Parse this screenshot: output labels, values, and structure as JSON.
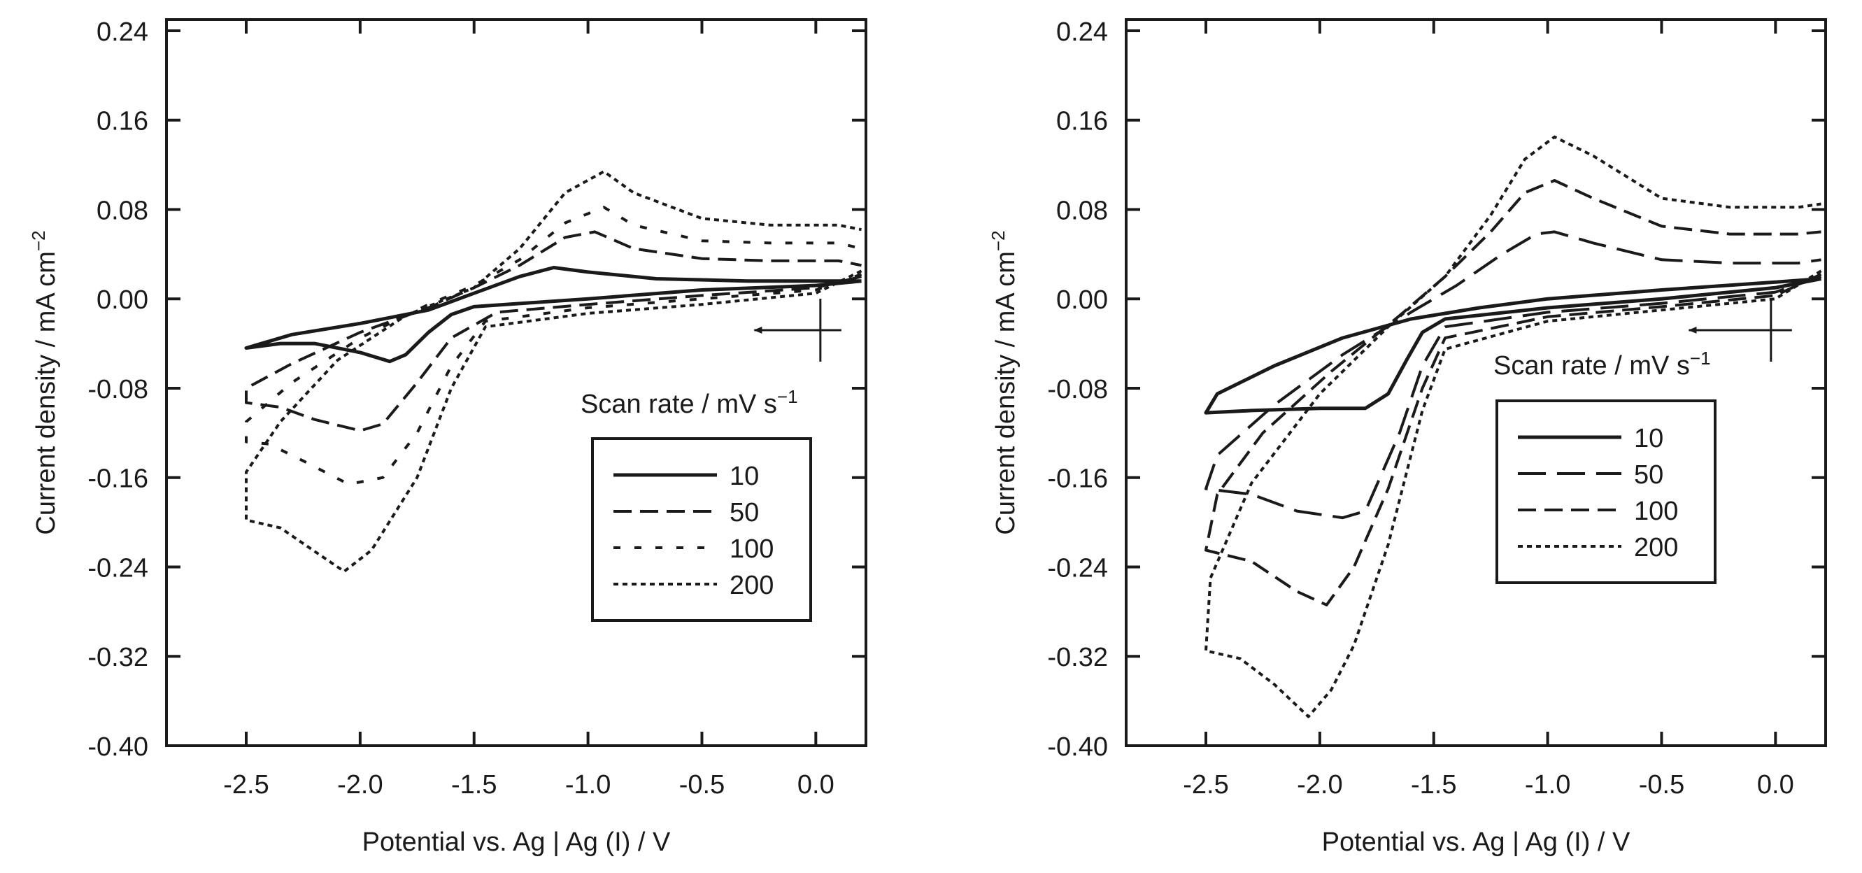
{
  "chart_data": [
    {
      "type": "line",
      "xlabel": "Potential vs. Ag | Ag (I) / V",
      "ylabel_main": "Current density / mA cm",
      "ylabel_sup": "−2",
      "xlim": [
        -2.85,
        0.22
      ],
      "ylim": [
        -0.4,
        0.25
      ],
      "xticks": [
        -2.5,
        -2.0,
        -1.5,
        -1.0,
        -0.5,
        0.0
      ],
      "xtick_labels": [
        "-2.5",
        "-2.0",
        "-1.5",
        "-1.0",
        "-0.5",
        "0.0"
      ],
      "yticks": [
        0.24,
        0.16,
        0.08,
        0.0,
        -0.08,
        -0.16,
        -0.24,
        -0.32,
        -0.4
      ],
      "ytick_labels": [
        "0.24",
        "0.16",
        "0.08",
        "0.00",
        "-0.08",
        "-0.16",
        "-0.24",
        "-0.32",
        "-0.40"
      ],
      "annotation_main": "Scan rate / mV s",
      "annotation_sup": "−1",
      "arrow": {
        "from": [
          0.02,
          -0.028
        ],
        "to": [
          -0.27,
          -0.028
        ]
      },
      "legend": [
        "10",
        "50",
        "100",
        "200"
      ],
      "series": [
        {
          "name": "10",
          "style": "solid",
          "points": [
            [
              0.2,
              0.016
            ],
            [
              0.0,
              0.012
            ],
            [
              -0.5,
              0.008
            ],
            [
              -1.0,
              0.0
            ],
            [
              -1.5,
              -0.007
            ],
            [
              -1.6,
              -0.014
            ],
            [
              -1.7,
              -0.03
            ],
            [
              -1.8,
              -0.05
            ],
            [
              -1.87,
              -0.056
            ],
            [
              -2.0,
              -0.048
            ],
            [
              -2.2,
              -0.04
            ],
            [
              -2.35,
              -0.04
            ],
            [
              -2.5,
              -0.044
            ],
            [
              -2.3,
              -0.032
            ],
            [
              -2.0,
              -0.022
            ],
            [
              -1.7,
              -0.01
            ],
            [
              -1.5,
              0.005
            ],
            [
              -1.3,
              0.02
            ],
            [
              -1.15,
              0.028
            ],
            [
              -1.0,
              0.024
            ],
            [
              -0.7,
              0.018
            ],
            [
              -0.3,
              0.016
            ],
            [
              0.0,
              0.016
            ],
            [
              0.2,
              0.016
            ]
          ]
        },
        {
          "name": "50",
          "style": "dash",
          "points": [
            [
              0.2,
              0.02
            ],
            [
              0.0,
              0.01
            ],
            [
              -0.5,
              0.003
            ],
            [
              -1.0,
              -0.005
            ],
            [
              -1.4,
              -0.012
            ],
            [
              -1.6,
              -0.035
            ],
            [
              -1.75,
              -0.075
            ],
            [
              -1.9,
              -0.112
            ],
            [
              -2.0,
              -0.118
            ],
            [
              -2.2,
              -0.108
            ],
            [
              -2.35,
              -0.097
            ],
            [
              -2.5,
              -0.093
            ],
            [
              -2.5,
              -0.08
            ],
            [
              -2.3,
              -0.058
            ],
            [
              -2.0,
              -0.03
            ],
            [
              -1.7,
              -0.008
            ],
            [
              -1.5,
              0.01
            ],
            [
              -1.3,
              0.03
            ],
            [
              -1.1,
              0.055
            ],
            [
              -0.97,
              0.06
            ],
            [
              -0.8,
              0.045
            ],
            [
              -0.5,
              0.036
            ],
            [
              -0.2,
              0.034
            ],
            [
              0.1,
              0.034
            ],
            [
              0.2,
              0.03
            ]
          ]
        },
        {
          "name": "100",
          "style": "sparse",
          "points": [
            [
              0.2,
              0.022
            ],
            [
              0.0,
              0.008
            ],
            [
              -0.5,
              0.0
            ],
            [
              -1.0,
              -0.008
            ],
            [
              -1.45,
              -0.02
            ],
            [
              -1.6,
              -0.06
            ],
            [
              -1.75,
              -0.12
            ],
            [
              -1.9,
              -0.16
            ],
            [
              -2.05,
              -0.166
            ],
            [
              -2.25,
              -0.145
            ],
            [
              -2.4,
              -0.13
            ],
            [
              -2.5,
              -0.128
            ],
            [
              -2.5,
              -0.11
            ],
            [
              -2.3,
              -0.075
            ],
            [
              -2.0,
              -0.035
            ],
            [
              -1.7,
              -0.005
            ],
            [
              -1.5,
              0.012
            ],
            [
              -1.3,
              0.035
            ],
            [
              -1.1,
              0.068
            ],
            [
              -0.93,
              0.082
            ],
            [
              -0.8,
              0.066
            ],
            [
              -0.5,
              0.052
            ],
            [
              -0.2,
              0.05
            ],
            [
              0.1,
              0.05
            ],
            [
              0.2,
              0.045
            ]
          ]
        },
        {
          "name": "200",
          "style": "dot",
          "points": [
            [
              0.2,
              0.025
            ],
            [
              0.0,
              0.005
            ],
            [
              -0.5,
              -0.005
            ],
            [
              -1.0,
              -0.013
            ],
            [
              -1.45,
              -0.025
            ],
            [
              -1.6,
              -0.08
            ],
            [
              -1.75,
              -0.16
            ],
            [
              -1.95,
              -0.225
            ],
            [
              -2.07,
              -0.244
            ],
            [
              -2.2,
              -0.226
            ],
            [
              -2.35,
              -0.205
            ],
            [
              -2.5,
              -0.198
            ],
            [
              -2.5,
              -0.155
            ],
            [
              -2.35,
              -0.11
            ],
            [
              -2.1,
              -0.055
            ],
            [
              -1.8,
              -0.015
            ],
            [
              -1.5,
              0.01
            ],
            [
              -1.3,
              0.045
            ],
            [
              -1.1,
              0.095
            ],
            [
              -0.93,
              0.114
            ],
            [
              -0.8,
              0.095
            ],
            [
              -0.5,
              0.072
            ],
            [
              -0.2,
              0.066
            ],
            [
              0.1,
              0.066
            ],
            [
              0.2,
              0.062
            ]
          ]
        }
      ]
    },
    {
      "type": "line",
      "xlabel": "Potential vs. Ag | Ag (I) / V",
      "ylabel_main": "Current density / mA cm",
      "ylabel_sup": "−2",
      "xlim": [
        -2.85,
        0.22
      ],
      "ylim": [
        -0.4,
        0.25
      ],
      "xticks": [
        -2.5,
        -2.0,
        -1.5,
        -1.0,
        -0.5,
        0.0
      ],
      "xtick_labels": [
        "-2.5",
        "-2.0",
        "-1.5",
        "-1.0",
        "-0.5",
        "0.0"
      ],
      "yticks": [
        0.24,
        0.16,
        0.08,
        0.0,
        -0.08,
        -0.16,
        -0.24,
        -0.32,
        -0.4
      ],
      "ytick_labels": [
        "0.24",
        "0.16",
        "0.08",
        "0.00",
        "-0.08",
        "-0.16",
        "-0.24",
        "-0.32",
        "-0.40"
      ],
      "annotation_main": "Scan rate / mV s",
      "annotation_sup": "−1",
      "arrow": {
        "from": [
          -0.02,
          -0.028
        ],
        "to": [
          -0.38,
          -0.028
        ]
      },
      "legend": [
        "10",
        "50",
        "100",
        "200"
      ],
      "series": [
        {
          "name": "10",
          "style": "solid",
          "points": [
            [
              0.2,
              0.018
            ],
            [
              0.0,
              0.01
            ],
            [
              -0.5,
              0.0
            ],
            [
              -1.0,
              -0.008
            ],
            [
              -1.45,
              -0.018
            ],
            [
              -1.55,
              -0.03
            ],
            [
              -1.62,
              -0.055
            ],
            [
              -1.7,
              -0.085
            ],
            [
              -1.8,
              -0.098
            ],
            [
              -2.0,
              -0.098
            ],
            [
              -2.3,
              -0.1
            ],
            [
              -2.5,
              -0.102
            ],
            [
              -2.45,
              -0.085
            ],
            [
              -2.2,
              -0.06
            ],
            [
              -1.9,
              -0.035
            ],
            [
              -1.6,
              -0.018
            ],
            [
              -1.3,
              -0.008
            ],
            [
              -1.0,
              0.0
            ],
            [
              -0.5,
              0.008
            ],
            [
              0.0,
              0.015
            ],
            [
              0.2,
              0.018
            ]
          ]
        },
        {
          "name": "50",
          "style": "longdash",
          "points": [
            [
              0.2,
              0.02
            ],
            [
              0.0,
              0.006
            ],
            [
              -0.5,
              -0.004
            ],
            [
              -1.0,
              -0.012
            ],
            [
              -1.45,
              -0.025
            ],
            [
              -1.55,
              -0.06
            ],
            [
              -1.65,
              -0.12
            ],
            [
              -1.8,
              -0.19
            ],
            [
              -1.9,
              -0.196
            ],
            [
              -2.1,
              -0.19
            ],
            [
              -2.3,
              -0.175
            ],
            [
              -2.5,
              -0.17
            ],
            [
              -2.45,
              -0.14
            ],
            [
              -2.2,
              -0.095
            ],
            [
              -1.9,
              -0.05
            ],
            [
              -1.6,
              -0.012
            ],
            [
              -1.4,
              0.012
            ],
            [
              -1.2,
              0.04
            ],
            [
              -1.05,
              0.058
            ],
            [
              -0.97,
              0.06
            ],
            [
              -0.8,
              0.05
            ],
            [
              -0.5,
              0.035
            ],
            [
              -0.2,
              0.032
            ],
            [
              0.1,
              0.032
            ],
            [
              0.2,
              0.035
            ]
          ]
        },
        {
          "name": "100",
          "style": "dash",
          "points": [
            [
              0.2,
              0.022
            ],
            [
              0.0,
              0.003
            ],
            [
              -0.5,
              -0.007
            ],
            [
              -1.0,
              -0.016
            ],
            [
              -1.45,
              -0.035
            ],
            [
              -1.55,
              -0.08
            ],
            [
              -1.7,
              -0.17
            ],
            [
              -1.85,
              -0.24
            ],
            [
              -1.97,
              -0.274
            ],
            [
              -2.1,
              -0.262
            ],
            [
              -2.3,
              -0.235
            ],
            [
              -2.5,
              -0.225
            ],
            [
              -2.45,
              -0.175
            ],
            [
              -2.25,
              -0.12
            ],
            [
              -1.95,
              -0.065
            ],
            [
              -1.65,
              -0.015
            ],
            [
              -1.45,
              0.02
            ],
            [
              -1.25,
              0.06
            ],
            [
              -1.1,
              0.095
            ],
            [
              -0.97,
              0.106
            ],
            [
              -0.8,
              0.09
            ],
            [
              -0.5,
              0.065
            ],
            [
              -0.2,
              0.058
            ],
            [
              0.1,
              0.058
            ],
            [
              0.2,
              0.06
            ]
          ]
        },
        {
          "name": "200",
          "style": "dot",
          "points": [
            [
              0.2,
              0.025
            ],
            [
              0.0,
              0.0
            ],
            [
              -0.5,
              -0.01
            ],
            [
              -1.0,
              -0.02
            ],
            [
              -1.45,
              -0.045
            ],
            [
              -1.55,
              -0.1
            ],
            [
              -1.7,
              -0.22
            ],
            [
              -1.85,
              -0.31
            ],
            [
              -1.95,
              -0.35
            ],
            [
              -2.05,
              -0.374
            ],
            [
              -2.2,
              -0.345
            ],
            [
              -2.35,
              -0.322
            ],
            [
              -2.5,
              -0.315
            ],
            [
              -2.48,
              -0.25
            ],
            [
              -2.3,
              -0.165
            ],
            [
              -2.0,
              -0.085
            ],
            [
              -1.7,
              -0.025
            ],
            [
              -1.45,
              0.02
            ],
            [
              -1.25,
              0.075
            ],
            [
              -1.1,
              0.125
            ],
            [
              -0.97,
              0.145
            ],
            [
              -0.8,
              0.128
            ],
            [
              -0.5,
              0.09
            ],
            [
              -0.2,
              0.082
            ],
            [
              0.1,
              0.082
            ],
            [
              0.2,
              0.085
            ]
          ]
        }
      ]
    }
  ]
}
